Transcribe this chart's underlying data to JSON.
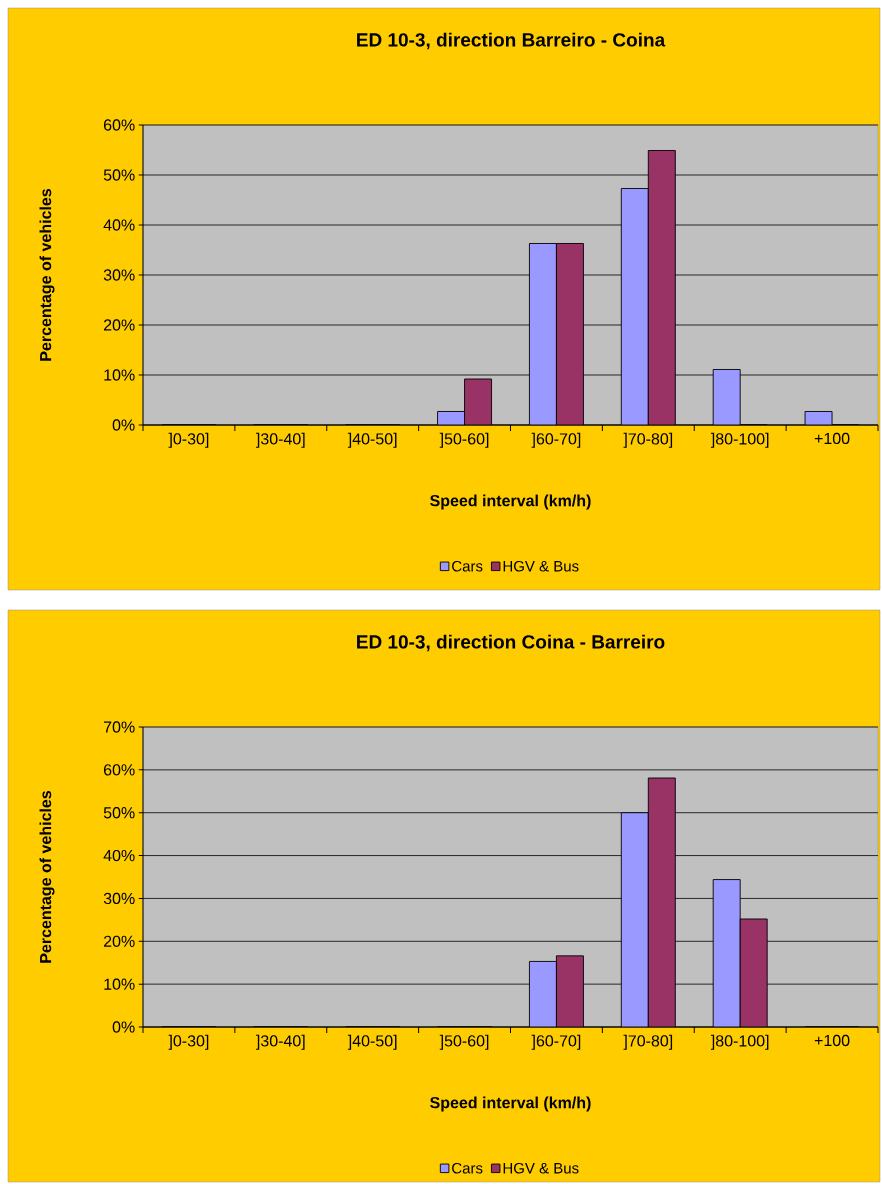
{
  "chart_data": [
    {
      "type": "bar",
      "title": "ED 10-3, direction Barreiro - Coina",
      "xlabel": "Speed interval (km/h)",
      "ylabel": "Percentage of vehicles",
      "categories": [
        "]0-30]",
        "]30-40]",
        "]40-50]",
        "]50-60]",
        "]60-70]",
        "]70-80]",
        "]80-100]",
        "+100"
      ],
      "series": [
        {
          "name": "Cars",
          "color": "#9999ff",
          "values": [
            0,
            0,
            0,
            2.7,
            36.3,
            47.3,
            11.1,
            2.7
          ]
        },
        {
          "name": "HGV & Bus",
          "color": "#993366",
          "values": [
            0,
            0,
            0,
            9.2,
            36.3,
            54.9,
            0,
            0
          ]
        }
      ],
      "ylim": [
        0,
        60
      ],
      "yticks": [
        {
          "value": 0,
          "label": "0%"
        },
        {
          "value": 10,
          "label": "10%"
        },
        {
          "value": 20,
          "label": "20%"
        },
        {
          "value": 30,
          "label": "30%"
        },
        {
          "value": 40,
          "label": "40%"
        },
        {
          "value": 50,
          "label": "50%"
        },
        {
          "value": 60,
          "label": "60%"
        }
      ],
      "grid": "y",
      "legend": "bottom"
    },
    {
      "type": "bar",
      "title": "ED 10-3, direction Coina - Barreiro",
      "xlabel": "Speed interval (km/h)",
      "ylabel": "Percentage of vehicles",
      "categories": [
        "]0-30]",
        "]30-40]",
        "]40-50]",
        "]50-60]",
        "]60-70]",
        "]70-80]",
        "]80-100]",
        "+100"
      ],
      "series": [
        {
          "name": "Cars",
          "color": "#9999ff",
          "values": [
            0,
            0,
            0,
            0,
            15.3,
            50,
            34.4,
            0
          ]
        },
        {
          "name": "HGV & Bus",
          "color": "#993366",
          "values": [
            0,
            0,
            0,
            0,
            16.6,
            58.1,
            25.2,
            0
          ]
        }
      ],
      "ylim": [
        0,
        70
      ],
      "yticks": [
        {
          "value": 0,
          "label": "0%"
        },
        {
          "value": 10,
          "label": "10%"
        },
        {
          "value": 20,
          "label": "20%"
        },
        {
          "value": 30,
          "label": "30%"
        },
        {
          "value": 40,
          "label": "40%"
        },
        {
          "value": 50,
          "label": "50%"
        },
        {
          "value": 60,
          "label": "60%"
        },
        {
          "value": 70,
          "label": "70%"
        }
      ],
      "grid": "y",
      "legend": "bottom"
    }
  ]
}
